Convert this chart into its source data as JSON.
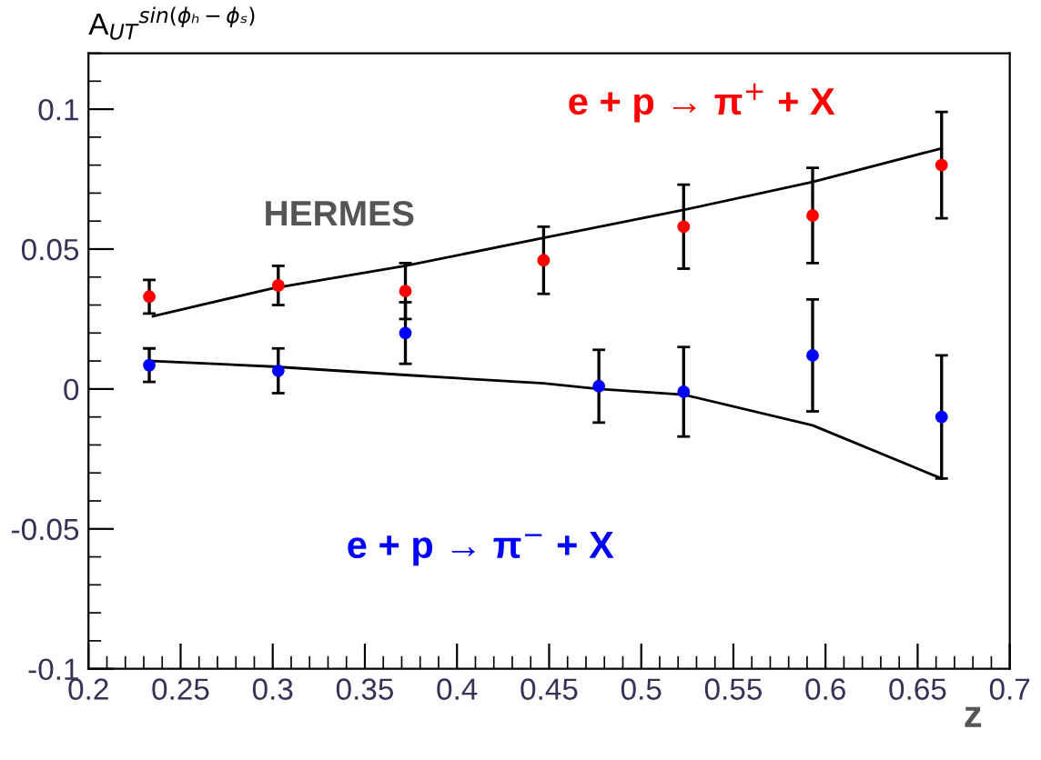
{
  "chart_data": {
    "type": "scatter",
    "xlabel": "z",
    "ylabel": "A$_{UT}$$^{sin(ϕₕ−ϕₛ)}$",
    "annotations": [
      "HERMES"
    ],
    "xlim": [
      0.2,
      0.7
    ],
    "ylim": [
      -0.1,
      0.12
    ],
    "xticks": [
      0.2,
      0.25,
      0.3,
      0.35,
      0.4,
      0.45,
      0.5,
      0.55,
      0.6,
      0.65,
      0.7
    ],
    "yticks": [
      -0.1,
      -0.05,
      0,
      0.05,
      0.1
    ],
    "grid": false,
    "series": [
      {
        "name": "e + p → π$^{+}$ + X",
        "marker": "circle",
        "color": "#ff0000",
        "x": [
          0.233,
          0.303,
          0.372,
          0.447,
          0.523,
          0.593,
          0.663
        ],
        "values": [
          0.033,
          0.037,
          0.035,
          0.046,
          0.058,
          0.062,
          0.08
        ],
        "errors": [
          0.006,
          0.007,
          0.01,
          0.012,
          0.015,
          0.017,
          0.019
        ]
      },
      {
        "name": "e + p → π$^{−}$ + X",
        "marker": "circle",
        "color": "#0000ff",
        "x": [
          0.233,
          0.303,
          0.372,
          0.477,
          0.523,
          0.593,
          0.663
        ],
        "values": [
          0.0085,
          0.0065,
          0.02,
          0.001,
          -0.001,
          0.012,
          -0.01
        ],
        "errors": [
          0.006,
          0.008,
          0.011,
          0.013,
          0.016,
          0.02,
          0.022
        ]
      },
      {
        "type": "line",
        "color": "#000000",
        "x": [
          0.235,
          0.3,
          0.372,
          0.447,
          0.523,
          0.593,
          0.663
        ],
        "values": [
          0.026,
          0.036,
          0.044,
          0.054,
          0.064,
          0.074,
          0.086
        ]
      },
      {
        "type": "line",
        "color": "#000000",
        "x": [
          0.235,
          0.3,
          0.372,
          0.447,
          0.477,
          0.523,
          0.593,
          0.663
        ],
        "values": [
          0.01,
          0.008,
          0.005,
          0.002,
          0.0,
          -0.002,
          -0.013,
          -0.032
        ]
      }
    ]
  }
}
